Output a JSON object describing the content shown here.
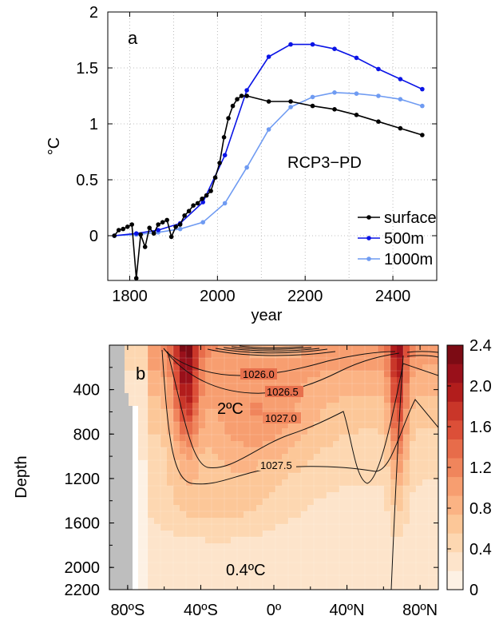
{
  "chart_data": [
    {
      "type": "line",
      "panel_label": "a",
      "xlabel": "year",
      "ylabel": "°C",
      "xlim": [
        1750,
        2500
      ],
      "ylim": [
        -0.4,
        2.0
      ],
      "xticks": [
        "1800",
        "2000",
        "2200",
        "2400"
      ],
      "yticks": [
        "0",
        "0.5",
        "1",
        "1.5",
        "2"
      ],
      "annotation": "RCP3−PD",
      "legend_position": "bottom-right",
      "grid": true,
      "series": [
        {
          "name": "surface",
          "color": "#000000",
          "x": [
            1765,
            1775,
            1785,
            1795,
            1805,
            1815,
            1825,
            1835,
            1845,
            1855,
            1865,
            1875,
            1885,
            1895,
            1905,
            1915,
            1925,
            1935,
            1945,
            1955,
            1965,
            1975,
            1985,
            1995,
            2005,
            2015,
            2025,
            2035,
            2045,
            2055,
            2067,
            2117,
            2167,
            2217,
            2267,
            2317,
            2367,
            2417,
            2467
          ],
          "y": [
            0.0,
            0.05,
            0.06,
            0.08,
            0.1,
            -0.38,
            0.01,
            -0.1,
            0.07,
            0.02,
            0.1,
            0.12,
            0.14,
            -0.01,
            0.08,
            0.1,
            0.18,
            0.22,
            0.27,
            0.29,
            0.33,
            0.36,
            0.4,
            0.52,
            0.65,
            0.88,
            1.05,
            1.16,
            1.22,
            1.25,
            1.25,
            1.2,
            1.2,
            1.16,
            1.13,
            1.08,
            1.02,
            0.96,
            0.9
          ]
        },
        {
          "name": "500m",
          "color": "#0a14e6",
          "x": [
            1765,
            1815,
            1865,
            1915,
            1967,
            2017,
            2067,
            2117,
            2167,
            2217,
            2267,
            2317,
            2367,
            2417,
            2467
          ],
          "y": [
            0.0,
            0.02,
            0.05,
            0.11,
            0.3,
            0.72,
            1.3,
            1.6,
            1.71,
            1.71,
            1.67,
            1.59,
            1.49,
            1.4,
            1.31
          ]
        },
        {
          "name": "1000m",
          "color": "#6f9bf2",
          "x": [
            1765,
            1815,
            1865,
            1915,
            1967,
            2017,
            2067,
            2117,
            2167,
            2217,
            2267,
            2317,
            2367,
            2417,
            2467
          ],
          "y": [
            0.0,
            0.01,
            0.03,
            0.06,
            0.12,
            0.29,
            0.61,
            0.95,
            1.15,
            1.24,
            1.28,
            1.27,
            1.25,
            1.22,
            1.16
          ]
        }
      ]
    },
    {
      "type": "heatmap",
      "panel_label": "b",
      "ylabel": "Depth",
      "x_range": [
        -90,
        90
      ],
      "y_range": [
        0,
        2200
      ],
      "xticks": [
        "80ºS",
        "40ºS",
        "0º",
        "40ºN",
        "80ºN"
      ],
      "yticks": [
        "400",
        "800",
        "1200",
        "1600",
        "2000",
        "2200"
      ],
      "colorbar_ticks": [
        "2.4",
        "2.0",
        "1.6",
        "1.2",
        "0.8",
        "0.4",
        "0"
      ],
      "colorbar_range": [
        0,
        2.4
      ],
      "colors": [
        "#fdf1e4",
        "#fde4cb",
        "#fdd7b1",
        "#fcc798",
        "#fbb384",
        "#f79e70",
        "#f0855c",
        "#e76c4a",
        "#dc4f38",
        "#c93629",
        "#b21d1c",
        "#99101a",
        "#7c0b14"
      ],
      "contour_labels": [
        "1026.0",
        "1026.5",
        "1027.0",
        "1027.5"
      ],
      "annotations": [
        "2ºC",
        "0.4ºC"
      ]
    }
  ]
}
